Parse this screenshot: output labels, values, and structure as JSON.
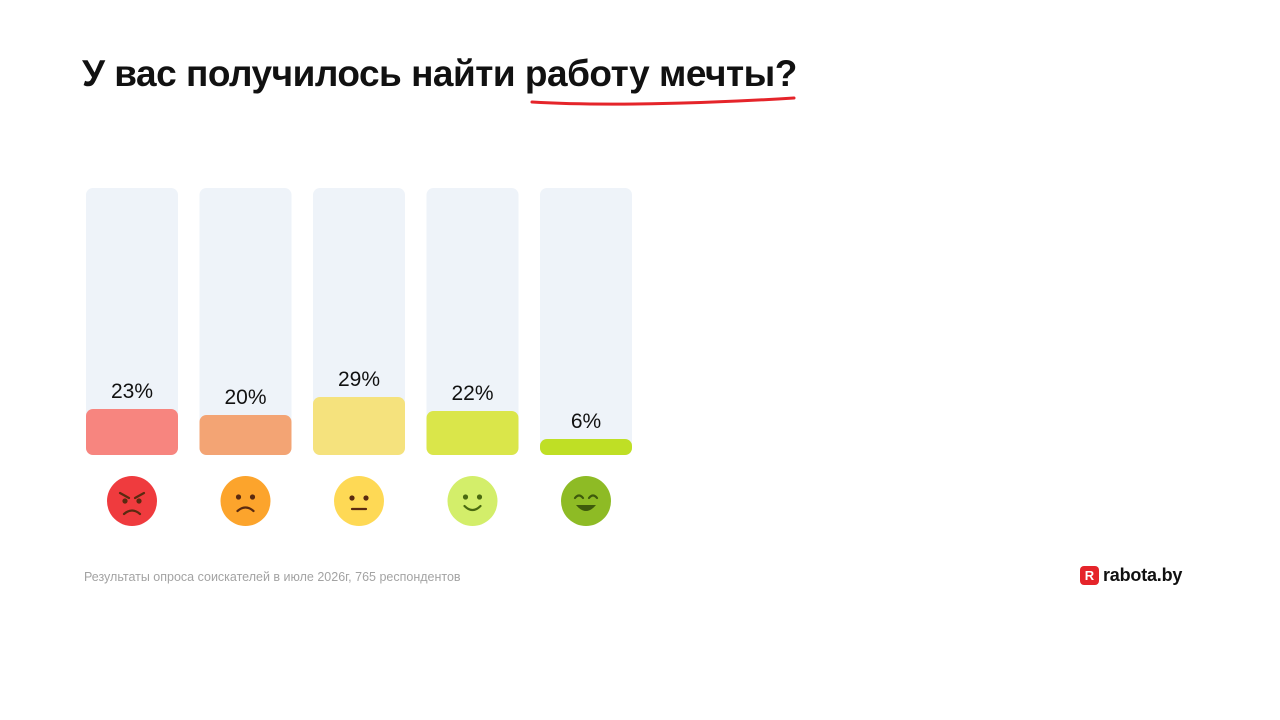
{
  "title": {
    "text": "У вас получилось найти работу мечты?"
  },
  "chart_data": {
    "type": "bar",
    "title": "У вас получилось найти работу мечты?",
    "categories": [
      "angry-face",
      "sad-face",
      "neutral-face",
      "smiling-face",
      "grinning-face"
    ],
    "values": [
      23,
      20,
      29,
      22,
      6
    ],
    "value_labels": [
      "23%",
      "20%",
      "29%",
      "22%",
      "6%"
    ],
    "ylim": [
      0,
      100
    ],
    "grid": false,
    "bar_colors": [
      "#f7857f",
      "#f3a474",
      "#f5e27d",
      "#dae64a",
      "#bfdf25"
    ],
    "track_color": "#eef3f9",
    "emoji_colors": [
      "#ef3b3e",
      "#fca42c",
      "#fed955",
      "#d3ee6a",
      "#8ebb25"
    ]
  },
  "footnote": "Результаты опроса соискателей в июле 2026г, 765 респондентов",
  "logo": {
    "mark": "R",
    "text": "rabota.by",
    "color": "#e5242a"
  },
  "accent_color": "#e5242a"
}
